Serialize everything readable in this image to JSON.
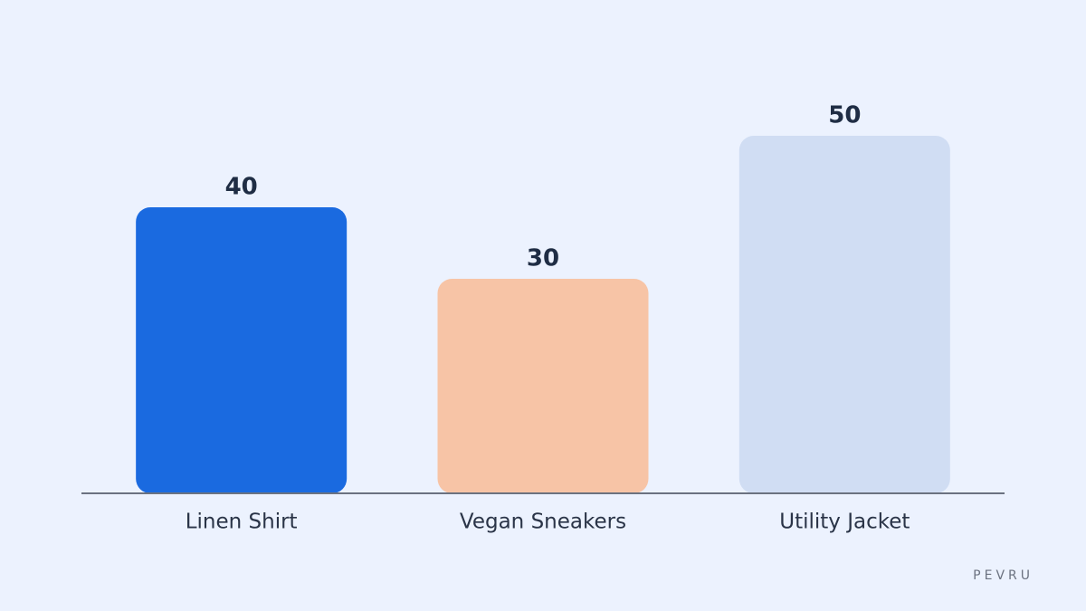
{
  "chart_data": {
    "type": "bar",
    "categories": [
      "Linen Shirt",
      "Vegan Sneakers",
      "Utility Jacket"
    ],
    "values": [
      40,
      30,
      50
    ],
    "colors": [
      "#1a6ae0",
      "#f7c4a6",
      "#d0ddf3"
    ],
    "watermark": "PEVRU"
  }
}
